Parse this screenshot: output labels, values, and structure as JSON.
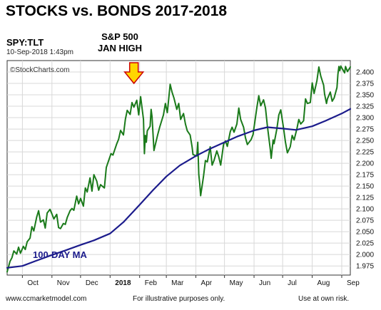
{
  "header": {
    "title": "STOCKS vs. BONDS  2017-2018",
    "symbol": "SPY:TLT",
    "date": "10-Sep-2018 1:43pm",
    "watermark": "©StockCharts.com"
  },
  "annotation": {
    "line1": "S&P 500",
    "line2": "JAN HIGH",
    "arrow_color": "#ffd600",
    "arrow_stroke": "#cc0000"
  },
  "footer": {
    "left": "www.ccmarketmodel.com",
    "middle": "For illustrative purposes only.",
    "right": "Use at own risk."
  },
  "colors": {
    "price": "#1a7a1a",
    "ma": "#1c1c8c",
    "grid": "#d8d8d8",
    "frame": "#333333"
  },
  "chart_data": {
    "type": "line",
    "title": "STOCKS vs. BONDS  2017-2018",
    "xlabel": "",
    "ylabel": "",
    "x_range": [
      "2017-09-15",
      "2018-09-10"
    ],
    "ylim": [
      1.955,
      2.425
    ],
    "y_ticks": [
      1.975,
      2.0,
      2.025,
      2.05,
      2.075,
      2.1,
      2.125,
      2.15,
      2.175,
      2.2,
      2.225,
      2.25,
      2.275,
      2.3,
      2.325,
      2.35,
      2.375,
      2.4
    ],
    "y_tick_labels": [
      "1.975",
      "2.000",
      "2.025",
      "2.050",
      "2.075",
      "2.100",
      "2.125",
      "2.150",
      "2.175",
      "2.200",
      "2.225",
      "2.250",
      "2.275",
      "2.300",
      "2.325",
      "2.350",
      "2.375",
      "2.400"
    ],
    "x_ticks": [
      {
        "label": "Oct",
        "date": "2017-10-01"
      },
      {
        "label": "Nov",
        "date": "2017-11-01"
      },
      {
        "label": "Dec",
        "date": "2017-12-01"
      },
      {
        "label": "2018",
        "date": "2018-01-01",
        "bold": true
      },
      {
        "label": "Feb",
        "date": "2018-02-01"
      },
      {
        "label": "Mar",
        "date": "2018-03-01"
      },
      {
        "label": "Apr",
        "date": "2018-04-01"
      },
      {
        "label": "May",
        "date": "2018-05-01"
      },
      {
        "label": "Jun",
        "date": "2018-06-01"
      },
      {
        "label": "Jul",
        "date": "2018-07-01"
      },
      {
        "label": "Aug",
        "date": "2018-08-01"
      },
      {
        "label": "Sep",
        "date": "2018-09-01"
      }
    ],
    "grid": true,
    "series": [
      {
        "name": "SPY:TLT",
        "color": "#1a7a1a",
        "points": [
          [
            "2017-09-15",
            1.962
          ],
          [
            "2017-09-18",
            1.985
          ],
          [
            "2017-09-20",
            1.993
          ],
          [
            "2017-09-22",
            2.008
          ],
          [
            "2017-09-25",
            2.001
          ],
          [
            "2017-09-27",
            2.016
          ],
          [
            "2017-09-29",
            2.003
          ],
          [
            "2017-10-02",
            2.018
          ],
          [
            "2017-10-04",
            2.011
          ],
          [
            "2017-10-06",
            2.028
          ],
          [
            "2017-10-09",
            2.036
          ],
          [
            "2017-10-11",
            2.061
          ],
          [
            "2017-10-13",
            2.052
          ],
          [
            "2017-10-16",
            2.082
          ],
          [
            "2017-10-18",
            2.096
          ],
          [
            "2017-10-20",
            2.071
          ],
          [
            "2017-10-23",
            2.076
          ],
          [
            "2017-10-25",
            2.058
          ],
          [
            "2017-10-27",
            2.091
          ],
          [
            "2017-10-30",
            2.099
          ],
          [
            "2017-11-01",
            2.089
          ],
          [
            "2017-11-03",
            2.078
          ],
          [
            "2017-11-06",
            2.088
          ],
          [
            "2017-11-08",
            2.059
          ],
          [
            "2017-11-10",
            2.057
          ],
          [
            "2017-11-13",
            2.068
          ],
          [
            "2017-11-15",
            2.066
          ],
          [
            "2017-11-17",
            2.081
          ],
          [
            "2017-11-20",
            2.096
          ],
          [
            "2017-11-22",
            2.101
          ],
          [
            "2017-11-24",
            2.097
          ],
          [
            "2017-11-27",
            2.128
          ],
          [
            "2017-11-29",
            2.111
          ],
          [
            "2017-12-01",
            2.123
          ],
          [
            "2017-12-04",
            2.106
          ],
          [
            "2017-12-06",
            2.146
          ],
          [
            "2017-12-08",
            2.137
          ],
          [
            "2017-12-11",
            2.168
          ],
          [
            "2017-12-13",
            2.139
          ],
          [
            "2017-12-15",
            2.175
          ],
          [
            "2017-12-18",
            2.161
          ],
          [
            "2017-12-20",
            2.141
          ],
          [
            "2017-12-22",
            2.153
          ],
          [
            "2017-12-26",
            2.146
          ],
          [
            "2017-12-28",
            2.191
          ],
          [
            "2018-01-02",
            2.221
          ],
          [
            "2018-01-04",
            2.218
          ],
          [
            "2018-01-08",
            2.243
          ],
          [
            "2018-01-10",
            2.253
          ],
          [
            "2018-01-12",
            2.272
          ],
          [
            "2018-01-15",
            2.262
          ],
          [
            "2018-01-17",
            2.296
          ],
          [
            "2018-01-19",
            2.316
          ],
          [
            "2018-01-22",
            2.307
          ],
          [
            "2018-01-24",
            2.333
          ],
          [
            "2018-01-26",
            2.323
          ],
          [
            "2018-01-29",
            2.338
          ],
          [
            "2018-01-31",
            2.306
          ],
          [
            "2018-02-02",
            2.346
          ],
          [
            "2018-02-05",
            2.296
          ],
          [
            "2018-02-06",
            2.221
          ],
          [
            "2018-02-07",
            2.261
          ],
          [
            "2018-02-08",
            2.246
          ],
          [
            "2018-02-09",
            2.271
          ],
          [
            "2018-02-12",
            2.281
          ],
          [
            "2018-02-13",
            2.318
          ],
          [
            "2018-02-14",
            2.302
          ],
          [
            "2018-02-16",
            2.228
          ],
          [
            "2018-02-20",
            2.263
          ],
          [
            "2018-02-22",
            2.279
          ],
          [
            "2018-02-26",
            2.306
          ],
          [
            "2018-02-28",
            2.331
          ],
          [
            "2018-03-02",
            2.311
          ],
          [
            "2018-03-05",
            2.373
          ],
          [
            "2018-03-07",
            2.356
          ],
          [
            "2018-03-09",
            2.343
          ],
          [
            "2018-03-12",
            2.318
          ],
          [
            "2018-03-14",
            2.331
          ],
          [
            "2018-03-16",
            2.296
          ],
          [
            "2018-03-19",
            2.309
          ],
          [
            "2018-03-21",
            2.286
          ],
          [
            "2018-03-23",
            2.271
          ],
          [
            "2018-03-26",
            2.262
          ],
          [
            "2018-03-28",
            2.236
          ],
          [
            "2018-03-29",
            2.219
          ],
          [
            "2018-04-02",
            2.216
          ],
          [
            "2018-04-03",
            2.246
          ],
          [
            "2018-04-04",
            2.176
          ],
          [
            "2018-04-05",
            2.156
          ],
          [
            "2018-04-06",
            2.129
          ],
          [
            "2018-04-09",
            2.171
          ],
          [
            "2018-04-11",
            2.206
          ],
          [
            "2018-04-13",
            2.203
          ],
          [
            "2018-04-16",
            2.236
          ],
          [
            "2018-04-18",
            2.196
          ],
          [
            "2018-04-20",
            2.206
          ],
          [
            "2018-04-23",
            2.227
          ],
          [
            "2018-04-25",
            2.214
          ],
          [
            "2018-04-27",
            2.196
          ],
          [
            "2018-04-30",
            2.241
          ],
          [
            "2018-05-02",
            2.249
          ],
          [
            "2018-05-04",
            2.237
          ],
          [
            "2018-05-07",
            2.269
          ],
          [
            "2018-05-09",
            2.279
          ],
          [
            "2018-05-11",
            2.268
          ],
          [
            "2018-05-14",
            2.286
          ],
          [
            "2018-05-16",
            2.321
          ],
          [
            "2018-05-18",
            2.296
          ],
          [
            "2018-05-21",
            2.279
          ],
          [
            "2018-05-23",
            2.256
          ],
          [
            "2018-05-25",
            2.241
          ],
          [
            "2018-05-29",
            2.252
          ],
          [
            "2018-05-31",
            2.263
          ],
          [
            "2018-06-01",
            2.279
          ],
          [
            "2018-06-04",
            2.323
          ],
          [
            "2018-06-06",
            2.348
          ],
          [
            "2018-06-08",
            2.326
          ],
          [
            "2018-06-11",
            2.339
          ],
          [
            "2018-06-13",
            2.321
          ],
          [
            "2018-06-15",
            2.281
          ],
          [
            "2018-06-18",
            2.231
          ],
          [
            "2018-06-19",
            2.211
          ],
          [
            "2018-06-21",
            2.251
          ],
          [
            "2018-06-22",
            2.243
          ],
          [
            "2018-06-25",
            2.276
          ],
          [
            "2018-06-27",
            2.306
          ],
          [
            "2018-06-29",
            2.317
          ],
          [
            "2018-07-02",
            2.276
          ],
          [
            "2018-07-04",
            2.246
          ],
          [
            "2018-07-06",
            2.223
          ],
          [
            "2018-07-09",
            2.236
          ],
          [
            "2018-07-11",
            2.261
          ],
          [
            "2018-07-13",
            2.251
          ],
          [
            "2018-07-16",
            2.276
          ],
          [
            "2018-07-18",
            2.296
          ],
          [
            "2018-07-20",
            2.286
          ],
          [
            "2018-07-23",
            2.293
          ],
          [
            "2018-07-25",
            2.341
          ],
          [
            "2018-07-27",
            2.331
          ],
          [
            "2018-07-30",
            2.333
          ],
          [
            "2018-08-01",
            2.376
          ],
          [
            "2018-08-03",
            2.353
          ],
          [
            "2018-08-06",
            2.381
          ],
          [
            "2018-08-08",
            2.411
          ],
          [
            "2018-08-10",
            2.391
          ],
          [
            "2018-08-13",
            2.371
          ],
          [
            "2018-08-14",
            2.352
          ],
          [
            "2018-08-16",
            2.331
          ],
          [
            "2018-08-17",
            2.341
          ],
          [
            "2018-08-20",
            2.356
          ],
          [
            "2018-08-22",
            2.336
          ],
          [
            "2018-08-24",
            2.343
          ],
          [
            "2018-08-27",
            2.366
          ],
          [
            "2018-08-28",
            2.395
          ],
          [
            "2018-08-29",
            2.412
          ],
          [
            "2018-08-30",
            2.403
          ],
          [
            "2018-08-31",
            2.413
          ],
          [
            "2018-09-04",
            2.398
          ],
          [
            "2018-09-05",
            2.412
          ],
          [
            "2018-09-07",
            2.401
          ],
          [
            "2018-09-10",
            2.411
          ]
        ]
      },
      {
        "name": "100-DAY MA",
        "color": "#1c1c8c",
        "points": [
          [
            "2017-09-15",
            1.971
          ],
          [
            "2017-10-01",
            1.975
          ],
          [
            "2017-10-15",
            1.986
          ],
          [
            "2017-11-01",
            1.999
          ],
          [
            "2017-11-15",
            2.009
          ],
          [
            "2017-12-01",
            2.021
          ],
          [
            "2017-12-15",
            2.031
          ],
          [
            "2018-01-01",
            2.046
          ],
          [
            "2018-01-15",
            2.071
          ],
          [
            "2018-02-01",
            2.109
          ],
          [
            "2018-02-15",
            2.141
          ],
          [
            "2018-03-01",
            2.171
          ],
          [
            "2018-03-15",
            2.195
          ],
          [
            "2018-04-01",
            2.216
          ],
          [
            "2018-04-15",
            2.231
          ],
          [
            "2018-05-01",
            2.246
          ],
          [
            "2018-05-15",
            2.259
          ],
          [
            "2018-06-01",
            2.272
          ],
          [
            "2018-06-15",
            2.279
          ],
          [
            "2018-07-01",
            2.276
          ],
          [
            "2018-07-15",
            2.273
          ],
          [
            "2018-08-01",
            2.281
          ],
          [
            "2018-08-15",
            2.293
          ],
          [
            "2018-09-01",
            2.309
          ],
          [
            "2018-09-10",
            2.319
          ]
        ]
      }
    ],
    "annotations": [
      {
        "text": "S&P 500",
        "date": "2018-01-26"
      },
      {
        "text": "JAN HIGH",
        "date": "2018-01-26"
      }
    ]
  }
}
